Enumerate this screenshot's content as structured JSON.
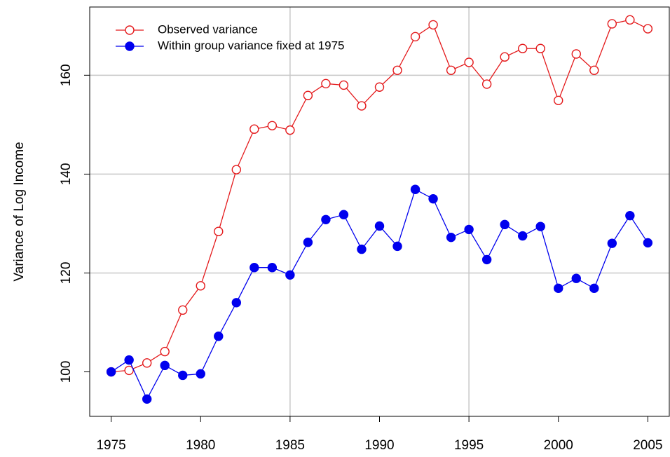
{
  "chart_data": {
    "type": "line",
    "y_label": "Variance of Log Income",
    "x": [
      1975,
      1976,
      1977,
      1978,
      1979,
      1980,
      1981,
      1982,
      1983,
      1984,
      1985,
      1986,
      1987,
      1988,
      1989,
      1990,
      1991,
      1992,
      1993,
      1994,
      1995,
      1996,
      1997,
      1998,
      1999,
      2000,
      2001,
      2002,
      2003,
      2004,
      2005
    ],
    "series": [
      {
        "name": "Observed variance",
        "color": "#e41a1c",
        "marker": "open",
        "values": [
          100,
          100.3,
          101.8,
          104.1,
          112.5,
          117.4,
          128.4,
          140.9,
          149.1,
          149.8,
          148.9,
          155.9,
          158.3,
          158.0,
          153.8,
          157.6,
          161.0,
          167.8,
          170.2,
          161.0,
          162.6,
          158.2,
          163.7,
          165.4,
          165.4,
          154.9,
          164.3,
          161.0,
          170.4,
          171.2,
          169.4
        ]
      },
      {
        "name": "Within group variance fixed at 1975",
        "color": "#0000ee",
        "marker": "filled",
        "values": [
          100,
          102.4,
          94.5,
          101.3,
          99.3,
          99.6,
          107.2,
          114.0,
          121.1,
          121.1,
          119.6,
          126.2,
          130.8,
          131.8,
          124.8,
          129.5,
          125.4,
          136.9,
          135.0,
          127.2,
          128.8,
          122.7,
          129.8,
          127.5,
          129.4,
          116.9,
          118.9,
          116.9,
          126.0,
          131.6,
          126.1
        ]
      }
    ],
    "xlim": [
      1973.8,
      2006.2
    ],
    "ylim": [
      91.0,
      173.8
    ],
    "xticks": [
      1975,
      1980,
      1985,
      1990,
      1995,
      2000,
      2005
    ],
    "yticks": [
      100,
      120,
      140,
      160
    ],
    "grid_x": [
      1985,
      1995
    ],
    "grid_y": [
      120,
      140,
      160
    ],
    "legend": "top-left"
  }
}
